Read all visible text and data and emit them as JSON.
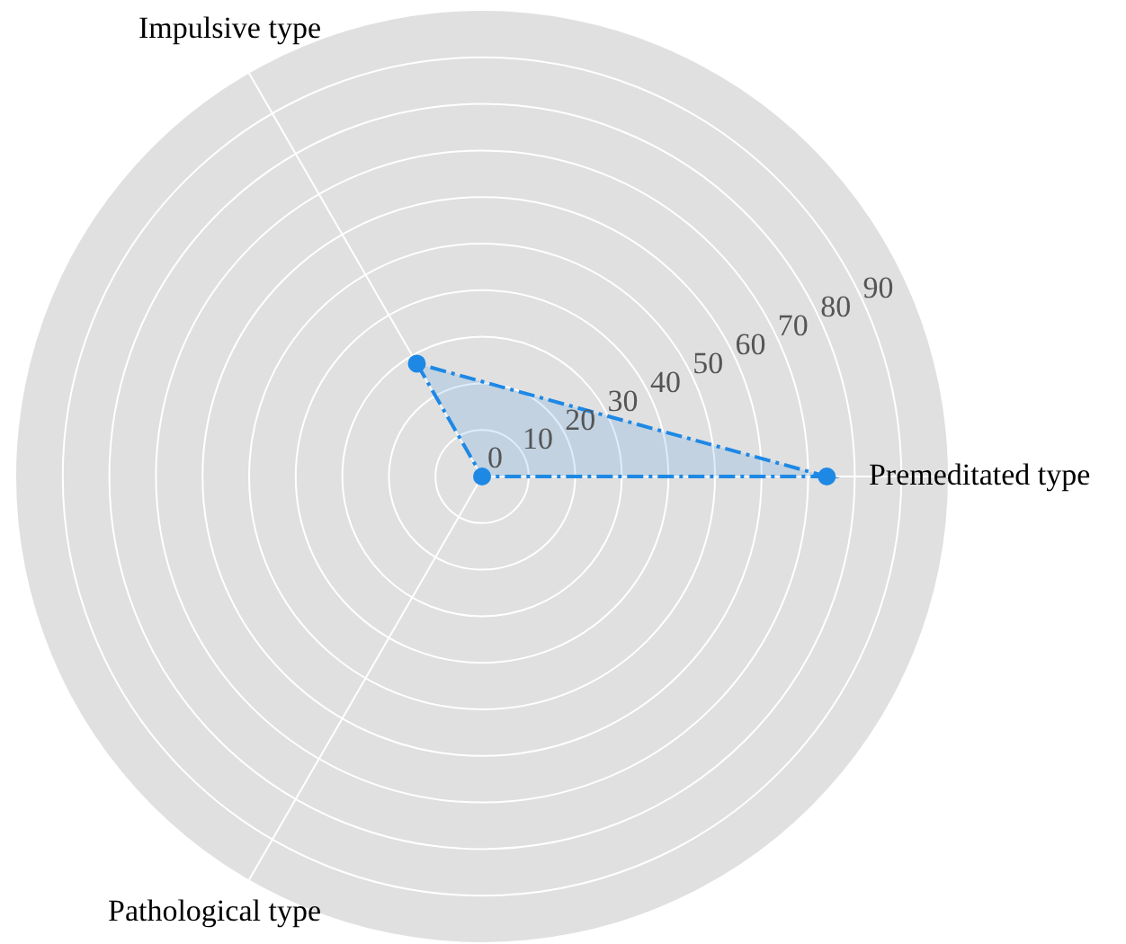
{
  "chart_data": {
    "type": "radar",
    "categories": [
      "Premeditated type",
      "Pathological type",
      "Impulsive type"
    ],
    "series": [
      {
        "color": "#1e88e5",
        "values": [
          74,
          0,
          28
        ]
      }
    ],
    "ylim": [
      0,
      100
    ],
    "yticks": [
      0,
      10,
      20,
      30,
      40,
      50,
      60,
      70,
      80,
      90
    ],
    "grid": true,
    "legend": false,
    "marker": "circle",
    "line_style": "dashed"
  }
}
